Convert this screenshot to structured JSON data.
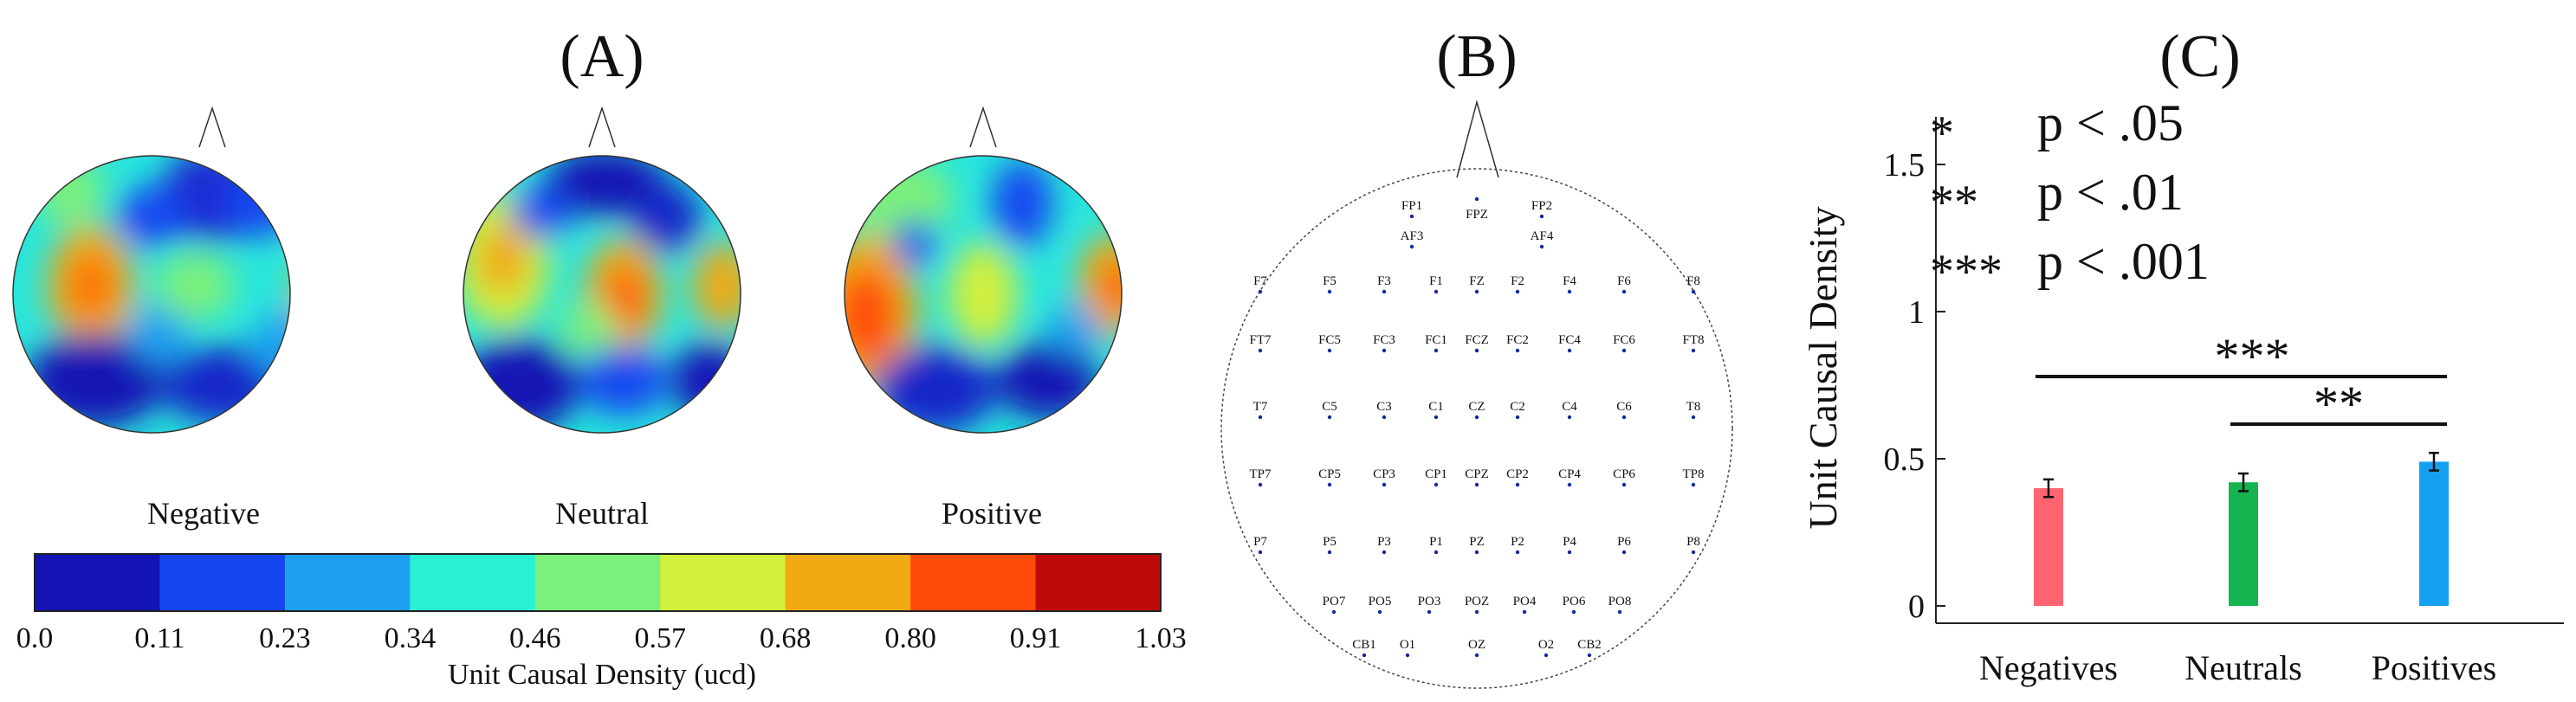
{
  "panels": {
    "a": "(A)",
    "b": "(B)",
    "c": "(C)"
  },
  "topomaps": {
    "labels": [
      "Negative",
      "Neutral",
      "Positive"
    ]
  },
  "colorbar": {
    "ticks": [
      "0.0",
      "0.11",
      "0.23",
      "0.34",
      "0.46",
      "0.57",
      "0.68",
      "0.80",
      "0.91",
      "1.03"
    ],
    "colors": [
      "#1414b4",
      "#1446f0",
      "#1ea0f0",
      "#28f0d2",
      "#7cf07c",
      "#d2f03c",
      "#f0aa14",
      "#ff4b0a",
      "#c00a0a"
    ],
    "label": "Unit Causal Density (ucd)"
  },
  "electrodes": {
    "rows": [
      [
        "FP1",
        "FPZ",
        "FP2"
      ],
      [
        "AF3",
        "AF4"
      ],
      [
        "F7",
        "F5",
        "F3",
        "F1",
        "FZ",
        "F2",
        "F4",
        "F6",
        "F8"
      ],
      [
        "FT7",
        "FC5",
        "FC3",
        "FC1",
        "FCZ",
        "FC2",
        "FC4",
        "FC6",
        "FT8"
      ],
      [
        "T7",
        "C5",
        "C3",
        "C1",
        "CZ",
        "C2",
        "C4",
        "C6",
        "T8"
      ],
      [
        "TP7",
        "CP5",
        "CP3",
        "CP1",
        "CPZ",
        "CP2",
        "CP4",
        "CP6",
        "TP8"
      ],
      [
        "P7",
        "P5",
        "P3",
        "P1",
        "PZ",
        "P2",
        "P4",
        "P6",
        "P8"
      ],
      [
        "PO7",
        "PO5",
        "PO3",
        "POZ",
        "PO4",
        "PO6",
        "PO8"
      ],
      [
        "CB1",
        "O1",
        "OZ",
        "O2",
        "CB2"
      ]
    ]
  },
  "chart_data": {
    "type": "bar",
    "categories": [
      "Negatives",
      "Neutrals",
      "Positives"
    ],
    "values": [
      0.4,
      0.42,
      0.49
    ],
    "errors": [
      0.03,
      0.03,
      0.03
    ],
    "colors": [
      "#ff6470",
      "#14b450",
      "#14a0f0"
    ],
    "ylabel": "Unit Causal Density",
    "ylim": [
      0,
      1.65
    ],
    "yticks": [
      "0",
      "0.5",
      "1",
      "1.5"
    ],
    "yticks_values": [
      0,
      0.5,
      1,
      1.5
    ],
    "legend": [
      {
        "stars": "*",
        "text": "p < .05"
      },
      {
        "stars": "**",
        "text": "p < .01"
      },
      {
        "stars": "***",
        "text": "p < .001"
      }
    ],
    "significance": [
      {
        "from": "Negatives",
        "to": "Positives",
        "stars": "***"
      },
      {
        "from": "Neutrals",
        "to": "Positives",
        "stars": "**"
      }
    ]
  }
}
